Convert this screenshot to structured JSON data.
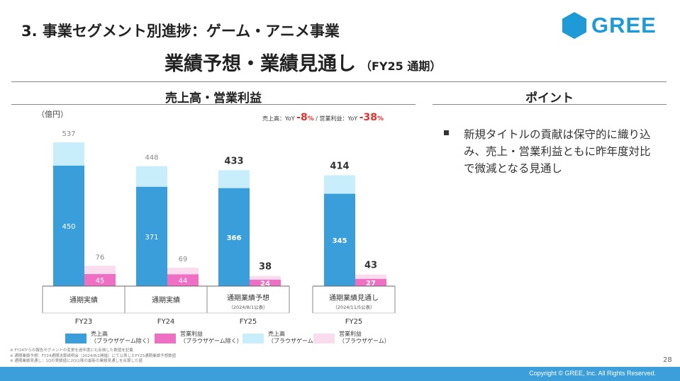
{
  "header": {
    "title": "3. 事業セグメント別進捗：ゲーム・アニメ事業",
    "subtitle": "業績予想・業績見通し",
    "subtitle_suffix": "（FY25 通期）",
    "logo_text": "GREE"
  },
  "left_section": {
    "title": "売上高・営業利益",
    "unit": "（億円）",
    "yoy": {
      "sales_label": "売上高：YoY",
      "sales_value": "-8",
      "pct": "%",
      "separator": " / ",
      "profit_label": "営業利益：YoY",
      "profit_value": "-38"
    }
  },
  "right_section": {
    "title": "ポイント",
    "points": [
      "新規タイトルの貢献は保守的に織り込み、売上・営業利益ともに昨年度対比で微減となる見通し"
    ]
  },
  "chart_data": {
    "type": "bar",
    "stacked": true,
    "ylabel": "（億円）",
    "groups": [
      {
        "period": "FY23",
        "label": "通期実績",
        "sublabel": "",
        "sales_ex": 450,
        "sales_total": 537,
        "profit_ex": 45,
        "profit_total": 76,
        "bold_totals": false
      },
      {
        "period": "FY24",
        "label": "通期実績",
        "sublabel": "",
        "sales_ex": 371,
        "sales_total": 448,
        "profit_ex": 44,
        "profit_total": 69,
        "bold_totals": false
      },
      {
        "period": "FY25",
        "label": "通期業績予想",
        "sublabel": "（2024/8/1公表）",
        "sales_ex": 366,
        "sales_total": 433,
        "profit_ex": 24,
        "profit_total": 38,
        "bold_totals": true
      },
      {
        "period": "FY25",
        "label": "通期業績見通し",
        "sublabel": "（2024/11/5公表）",
        "sales_ex": 345,
        "sales_total": 414,
        "profit_ex": 27,
        "profit_total": 43,
        "bold_totals": true
      }
    ],
    "legend": [
      {
        "label_line1": "売上高",
        "label_line2": "（ブラウザゲーム除く）",
        "color": "#3a9edb"
      },
      {
        "label_line1": "営業利益",
        "label_line2": "（ブラウザゲーム除く）",
        "color": "#ee6fc3"
      },
      {
        "label_line1": "売上高",
        "label_line2": "（ブラウザゲーム）",
        "color": "#c9eefb"
      },
      {
        "label_line1": "営業利益",
        "label_line2": "（ブラウザゲーム）",
        "color": "#fbdcef"
      }
    ]
  },
  "footnotes": [
    "※ FY24からの報告セグメントの変更を過年度にも反映した数値を記載",
    "※ 通期業績予想：FY24通期決算説明会（2024/8/1開催）にて公表したFY25通期業績予想数値",
    "※ 通期業績見通し：1Qの実績値に2Q以降の最新の業績見通しを合算した値"
  ],
  "page_number": "28",
  "copyright": "Copyright © GREE, Inc. All Rights Reserved."
}
